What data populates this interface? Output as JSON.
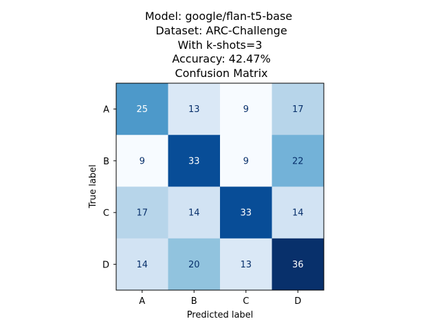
{
  "chart_data": {
    "type": "heatmap",
    "title_lines": [
      "Model: google/flan-t5-base",
      "Dataset: ARC-Challenge",
      "With k-shots=3",
      "Accuracy: 42.47%",
      "Confusion Matrix"
    ],
    "xlabel": "Predicted label",
    "ylabel": "True label",
    "x_categories": [
      "A",
      "B",
      "C",
      "D"
    ],
    "y_categories": [
      "A",
      "B",
      "C",
      "D"
    ],
    "matrix": [
      [
        25,
        13,
        9,
        17
      ],
      [
        9,
        33,
        9,
        22
      ],
      [
        17,
        14,
        33,
        14
      ],
      [
        14,
        20,
        13,
        36
      ]
    ],
    "colormap": "Blues",
    "value_range": [
      9,
      36
    ],
    "colorbar": false
  }
}
